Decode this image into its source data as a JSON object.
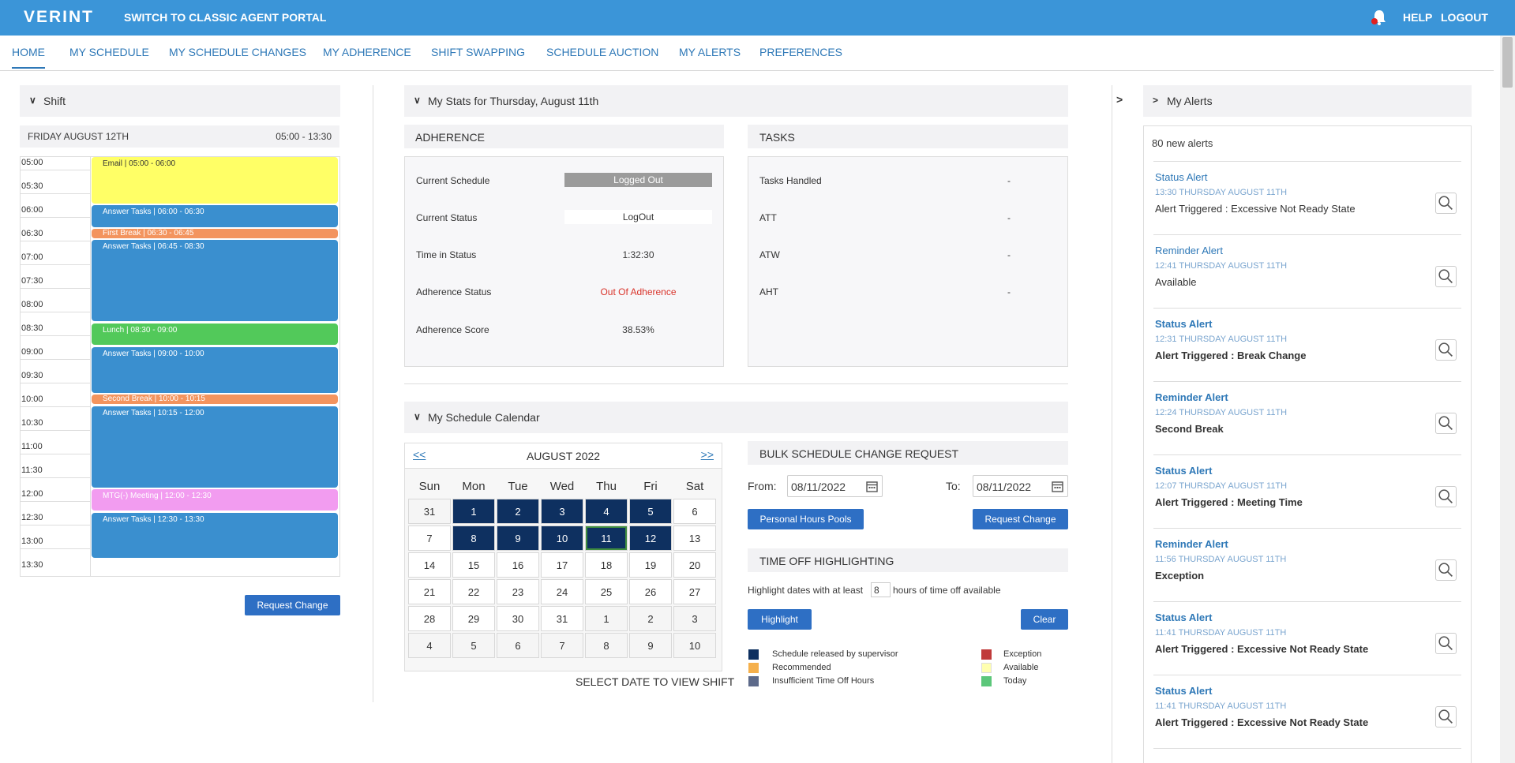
{
  "header": {
    "logo": "VERINT",
    "classic_link": "SWITCH TO CLASSIC AGENT PORTAL",
    "help": "HELP",
    "logout": "LOGOUT",
    "bell_icon": "bell-icon"
  },
  "nav": {
    "items": [
      "HOME",
      "MY SCHEDULE",
      "MY SCHEDULE CHANGES",
      "MY ADHERENCE",
      "SHIFT SWAPPING",
      "SCHEDULE AUCTION",
      "MY ALERTS",
      "PREFERENCES"
    ],
    "active": "HOME"
  },
  "shift": {
    "title": "Shift",
    "day": "FRIDAY AUGUST 12TH",
    "range": "05:00 - 13:30",
    "times": [
      "05:00",
      "05:30",
      "06:00",
      "06:30",
      "07:00",
      "07:30",
      "08:00",
      "08:30",
      "09:00",
      "09:30",
      "10:00",
      "10:30",
      "11:00",
      "11:30",
      "12:00",
      "12:30",
      "13:00",
      "13:30"
    ],
    "events": [
      {
        "label": "Email | 05:00 - 06:00",
        "color": "#ffff66",
        "text_color": "#333333"
      },
      {
        "label": "Answer Tasks | 06:00 - 06:30",
        "color": "#3a8fcf",
        "text_color": "#ffffff"
      },
      {
        "label": "First Break | 06:30 - 06:45",
        "color": "#f3945e",
        "text_color": "#ffffff"
      },
      {
        "label": "Answer Tasks | 06:45 - 08:30",
        "color": "#3a8fcf",
        "text_color": "#ffffff"
      },
      {
        "label": "Lunch | 08:30 - 09:00",
        "color": "#52c95a",
        "text_color": "#ffffff"
      },
      {
        "label": "Answer Tasks | 09:00 - 10:00",
        "color": "#3a8fcf",
        "text_color": "#ffffff"
      },
      {
        "label": "Second Break | 10:00 - 10:15",
        "color": "#f3945e",
        "text_color": "#ffffff"
      },
      {
        "label": "Answer Tasks | 10:15 - 12:00",
        "color": "#3a8fcf",
        "text_color": "#ffffff"
      },
      {
        "label": "MTG(-) Meeting | 12:00 - 12:30",
        "color": "#f29cf0",
        "text_color": "#ffffff"
      },
      {
        "label": "Answer Tasks | 12:30 - 13:30",
        "color": "#3a8fcf",
        "text_color": "#ffffff"
      }
    ],
    "request_change": "Request Change"
  },
  "stats": {
    "title": "My Stats for Thursday, August 11th",
    "adherence": {
      "title": "ADHERENCE",
      "rows": [
        {
          "label": "Current Schedule",
          "value": "Logged Out"
        },
        {
          "label": "Current Status",
          "value": "LogOut"
        },
        {
          "label": "Time in Status",
          "value": "1:32:30"
        },
        {
          "label": "Adherence Status",
          "value": "Out Of Adherence"
        },
        {
          "label": "Adherence Score",
          "value": "38.53%"
        }
      ]
    },
    "tasks": {
      "title": "TASKS",
      "rows": [
        {
          "label": "Tasks Handled",
          "value": "-"
        },
        {
          "label": "ATT",
          "value": "-"
        },
        {
          "label": "ATW",
          "value": "-"
        },
        {
          "label": "AHT",
          "value": "-"
        }
      ]
    }
  },
  "calendar": {
    "title": "My Schedule Calendar",
    "prev": "<<",
    "next": ">>",
    "month": "AUGUST 2022",
    "weekdays": [
      "Sun",
      "Mon",
      "Tue",
      "Wed",
      "Thu",
      "Fri",
      "Sat"
    ],
    "weeks": [
      [
        "31",
        "1",
        "2",
        "3",
        "4",
        "5",
        "6"
      ],
      [
        "7",
        "8",
        "9",
        "10",
        "11",
        "12",
        "13"
      ],
      [
        "14",
        "15",
        "16",
        "17",
        "18",
        "19",
        "20"
      ],
      [
        "21",
        "22",
        "23",
        "24",
        "25",
        "26",
        "27"
      ],
      [
        "28",
        "29",
        "30",
        "31",
        "1",
        "2",
        "3"
      ],
      [
        "4",
        "5",
        "6",
        "7",
        "8",
        "9",
        "10"
      ]
    ],
    "released": [
      "1",
      "2",
      "3",
      "4",
      "5",
      "8",
      "9",
      "10",
      "12"
    ],
    "today": "11",
    "footer": "SELECT DATE TO VIEW SHIFT"
  },
  "bulk": {
    "title": "BULK SCHEDULE CHANGE REQUEST",
    "from_label": "From:",
    "from_value": "08/11/2022",
    "to_label": "To:",
    "to_value": "08/11/2022",
    "personal_hours": "Personal Hours Pools",
    "request_change": "Request Change"
  },
  "timeoff": {
    "title": "TIME OFF HIGHLIGHTING",
    "text_before": "Highlight dates with at least",
    "hours": "8",
    "text_after": "hours of time off available",
    "highlight": "Highlight",
    "clear": "Clear"
  },
  "legend": [
    {
      "label": "Schedule released by supervisor",
      "color": "#0e3060"
    },
    {
      "label": "Recommended",
      "color": "#f5b04c"
    },
    {
      "label": "Insufficient Time Off Hours",
      "color": "#5d6a8a"
    },
    {
      "label": "Exception",
      "color": "#c03a3a"
    },
    {
      "label": "Available",
      "color": "#ffffb0"
    },
    {
      "label": "Today",
      "color": "#5cc77a"
    }
  ],
  "alerts": {
    "title": "My Alerts",
    "toggle": ">",
    "count": "80 new alerts",
    "items": [
      {
        "type": "Status Alert",
        "time": "13:30 THURSDAY AUGUST 11TH",
        "msg": "Alert Triggered : Excessive Not Ready State",
        "bold": false
      },
      {
        "type": "Reminder Alert",
        "time": "12:41 THURSDAY AUGUST 11TH",
        "msg": "Available",
        "bold": false
      },
      {
        "type": "Status Alert",
        "time": "12:31 THURSDAY AUGUST 11TH",
        "msg": "Alert Triggered : Break Change",
        "bold": true
      },
      {
        "type": "Reminder Alert",
        "time": "12:24 THURSDAY AUGUST 11TH",
        "msg": "Second Break",
        "bold": true
      },
      {
        "type": "Status Alert",
        "time": "12:07 THURSDAY AUGUST 11TH",
        "msg": "Alert Triggered : Meeting Time",
        "bold": true
      },
      {
        "type": "Reminder Alert",
        "time": "11:56 THURSDAY AUGUST 11TH",
        "msg": "Exception",
        "bold": true
      },
      {
        "type": "Status Alert",
        "time": "11:41 THURSDAY AUGUST 11TH",
        "msg": "Alert Triggered : Excessive Not Ready State",
        "bold": true
      },
      {
        "type": "Status Alert",
        "time": "11:41 THURSDAY AUGUST 11TH",
        "msg": "Alert Triggered : Excessive Not Ready State",
        "bold": true
      }
    ]
  }
}
